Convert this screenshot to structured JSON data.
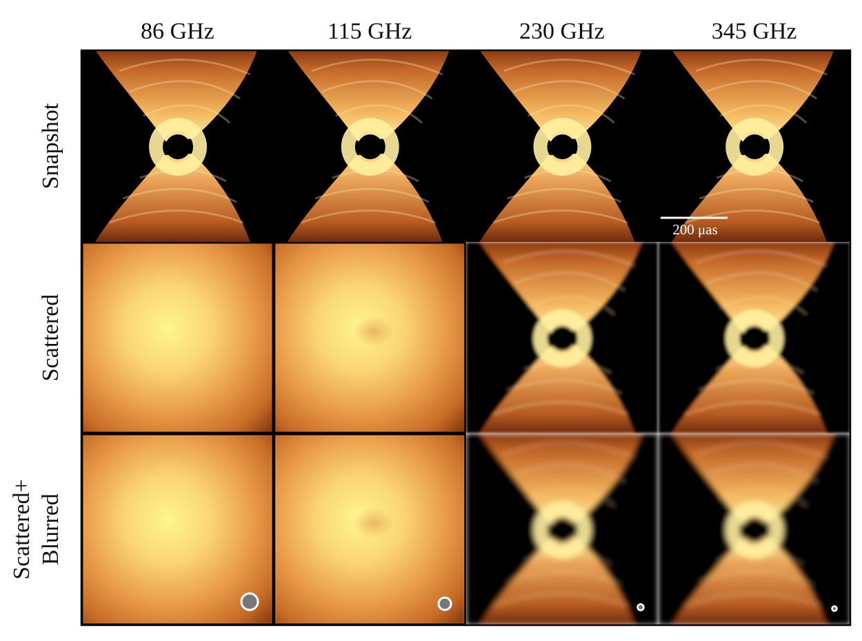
{
  "column_headers": [
    "86 GHz",
    "115 GHz",
    "230 GHz",
    "345 GHz"
  ],
  "row_labels": [
    [
      "Snapshot"
    ],
    [
      "Scattered"
    ],
    [
      "Scattered+",
      "Blurred"
    ]
  ],
  "scale_bar": {
    "label": "200 μas"
  }
}
